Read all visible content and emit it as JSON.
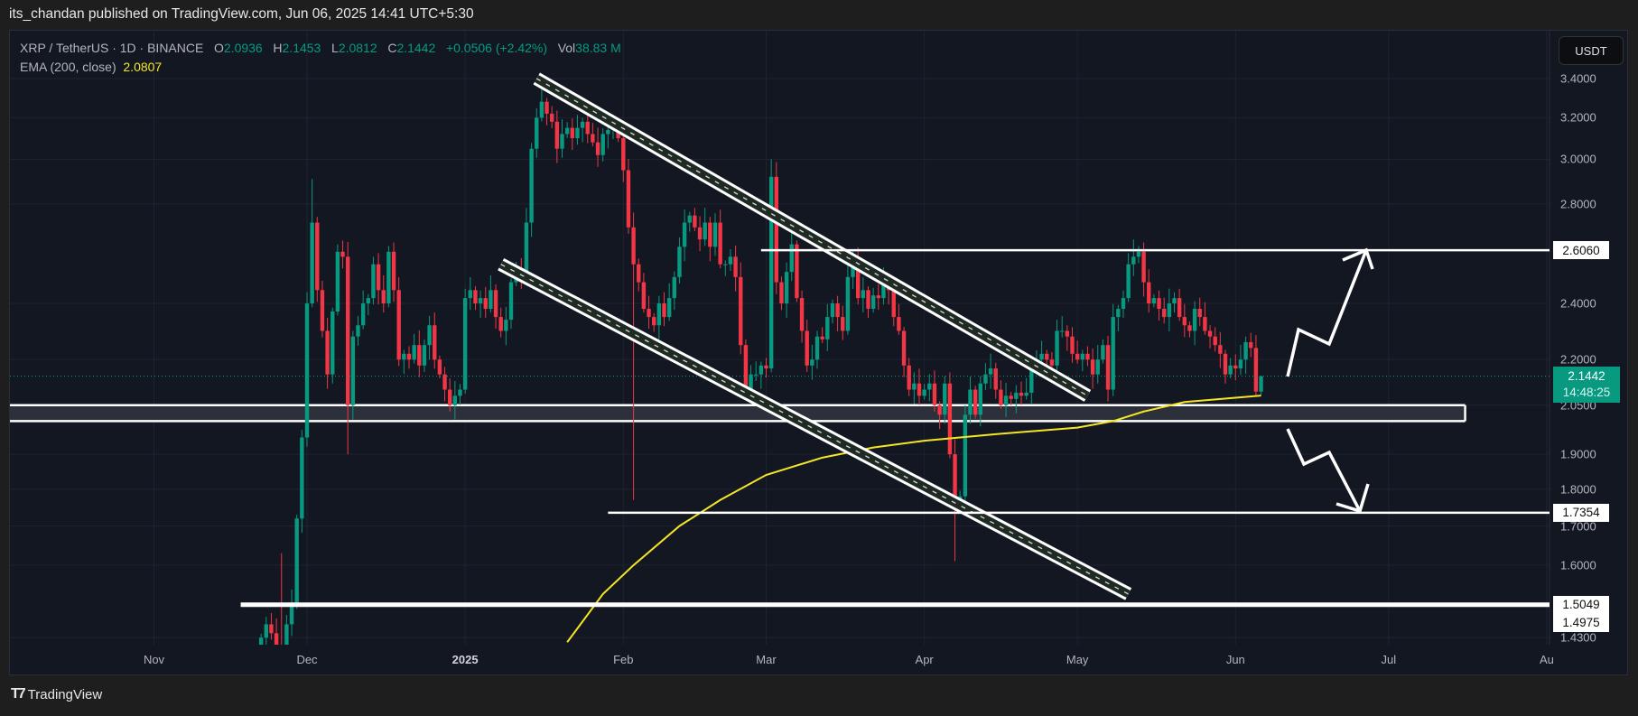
{
  "header": {
    "published": "its_chandan published on TradingView.com, Jun 06, 2025 14:41 UTC+5:30"
  },
  "legend": {
    "symbol": "XRP / TetherUS · 1D · BINANCE",
    "o_label": "O",
    "o": "2.0936",
    "h_label": "H",
    "h": "2.1453",
    "l_label": "L",
    "l": "2.0812",
    "c_label": "C",
    "c": "2.1442",
    "change": "+0.0506 (+2.42%)",
    "vol_label": "Vol",
    "vol": "38.83 M",
    "ema_label": "EMA (200, close)",
    "ema_value": "2.0807"
  },
  "price_axis": {
    "currency": "USDT",
    "scale": "log",
    "ticks": [
      "3.4000",
      "3.2000",
      "3.0000",
      "2.8000",
      "2.4000",
      "2.2000",
      "2.0500",
      "1.9000",
      "1.8000",
      "1.7000",
      "1.6000",
      "1.4300"
    ],
    "level_labels": [
      "2.6060",
      "1.7354",
      "1.5049",
      "1.4975"
    ],
    "current_price": "2.1442",
    "countdown": "14:48:25"
  },
  "time_axis": {
    "labels": [
      "Nov",
      "Dec",
      "2025",
      "Feb",
      "Mar",
      "Apr",
      "May",
      "Jun",
      "Jul",
      "Au"
    ]
  },
  "colors": {
    "up": "#089981",
    "down": "#f23645",
    "ema": "#f5e625",
    "background": "#131722",
    "drawing": "#ffffff"
  },
  "candles_by_month": [
    {
      "month": "2024-11",
      "first_day": 22,
      "first_open": 1.38,
      "close": [
        1.43,
        1.46,
        1.44,
        1.4,
        1.39,
        1.46,
        1.51,
        1.72,
        1.95
      ]
    },
    {
      "month": "2024-12",
      "first_day": 1,
      "close": [
        2.4,
        2.72,
        2.45,
        2.3,
        2.15,
        2.37,
        2.6,
        2.58,
        2.05,
        2.28,
        2.32,
        2.4,
        2.42,
        2.55,
        2.45,
        2.4,
        2.6,
        2.45,
        2.2,
        2.22,
        2.2,
        2.25,
        2.18,
        2.25,
        2.32,
        2.2,
        2.15,
        2.1,
        2.05,
        2.08,
        2.1
      ]
    },
    {
      "month": "2025-01",
      "first_day": 1,
      "close": [
        2.42,
        2.45,
        2.4,
        2.42,
        2.38,
        2.45,
        2.35,
        2.3,
        2.34,
        2.48,
        2.53,
        2.5,
        2.72,
        3.05,
        3.2,
        3.28,
        3.22,
        3.18,
        3.05,
        3.12,
        3.15,
        3.1,
        3.15,
        3.18,
        3.12,
        3.08,
        3.02,
        3.12,
        3.14,
        3.15,
        3.1
      ]
    },
    {
      "month": "2025-02",
      "first_day": 1,
      "close": [
        2.95,
        2.7,
        2.55,
        2.48,
        2.38,
        2.35,
        2.32,
        2.4,
        2.35,
        2.42,
        2.5,
        2.62,
        2.72,
        2.75,
        2.7,
        2.65,
        2.72,
        2.62,
        2.72,
        2.55,
        2.55,
        2.58,
        2.5,
        2.25,
        2.1,
        2.15,
        2.15,
        2.18
      ]
    },
    {
      "month": "2025-03",
      "first_day": 1,
      "close": [
        2.17,
        2.92,
        2.48,
        2.4,
        2.52,
        2.63,
        2.42,
        2.3,
        2.18,
        2.2,
        2.28,
        2.27,
        2.35,
        2.4,
        2.35,
        2.3,
        2.5,
        2.58,
        2.42,
        2.45,
        2.38,
        2.43,
        2.42,
        2.48,
        2.45,
        2.35,
        2.3,
        2.18,
        2.1,
        2.12,
        2.08
      ]
    },
    {
      "month": "2025-04",
      "first_day": 1,
      "close": [
        2.1,
        2.12,
        2.05,
        2.02,
        2.12,
        1.9,
        1.75,
        1.78,
        2.02,
        2.1,
        2.02,
        2.12,
        2.15,
        2.17,
        2.1,
        2.05,
        2.08,
        2.07,
        2.09,
        2.08,
        2.09,
        2.18,
        2.2,
        2.22,
        2.2,
        2.18,
        2.3,
        2.3,
        2.28,
        2.22
      ]
    },
    {
      "month": "2025-05",
      "first_day": 1,
      "close": [
        2.2,
        2.22,
        2.2,
        2.15,
        2.2,
        2.25,
        2.1,
        2.35,
        2.38,
        2.42,
        2.55,
        2.58,
        2.6,
        2.48,
        2.4,
        2.42,
        2.38,
        2.35,
        2.4,
        2.42,
        2.35,
        2.32,
        2.3,
        2.38,
        2.35,
        2.3,
        2.28,
        2.25,
        2.22,
        2.15,
        2.18
      ]
    },
    {
      "month": "2025-06",
      "first_day": 1,
      "close": [
        2.17,
        2.2,
        2.26,
        2.24,
        2.0936,
        2.1442
      ]
    }
  ],
  "wick_extremes": {
    "2024-11-26": {
      "high": 1.63
    },
    "2024-12-02": {
      "high": 2.91
    },
    "2024-12-09": {
      "low": 1.9
    },
    "2025-01-16": {
      "high": 3.4
    },
    "2025-02-03": {
      "low": 1.77
    },
    "2025-03-02": {
      "high": 3.0
    },
    "2025-04-07": {
      "low": 1.61
    },
    "2025-05-12": {
      "high": 2.65
    },
    "2025-06-06": {
      "high": 2.1453,
      "low": 2.0812
    }
  },
  "ema200": [
    [
      "2025-01-21",
      1.42
    ],
    [
      "2025-01-28",
      1.53
    ],
    [
      "2025-02-03",
      1.6
    ],
    [
      "2025-02-12",
      1.7
    ],
    [
      "2025-02-20",
      1.77
    ],
    [
      "2025-03-01",
      1.84
    ],
    [
      "2025-03-12",
      1.89
    ],
    [
      "2025-03-22",
      1.92
    ],
    [
      "2025-04-01",
      1.94
    ],
    [
      "2025-04-15",
      1.96
    ],
    [
      "2025-05-01",
      1.98
    ],
    [
      "2025-05-08",
      2.0
    ],
    [
      "2025-05-14",
      2.03
    ],
    [
      "2025-05-22",
      2.06
    ],
    [
      "2025-06-06",
      2.0807
    ]
  ],
  "drawings": {
    "channels": [
      {
        "from": [
          "2025-01-15",
          3.4
        ],
        "to": [
          "2025-05-03",
          2.08
        ]
      },
      {
        "from": [
          "2025-01-08",
          2.55
        ],
        "to": [
          "2025-05-11",
          1.53
        ]
      }
    ],
    "horizontal_levels": [
      {
        "price": 2.606,
        "from": "2025-02-28"
      },
      {
        "price": 1.7354,
        "from": "2025-01-29"
      },
      {
        "price": 1.5049,
        "from": "2024-11-18",
        "heavy": true
      }
    ],
    "support_zone": {
      "top": 2.05,
      "bottom": 2.0,
      "to": "2025-07-16"
    }
  },
  "footer": {
    "brand": "TradingView"
  }
}
